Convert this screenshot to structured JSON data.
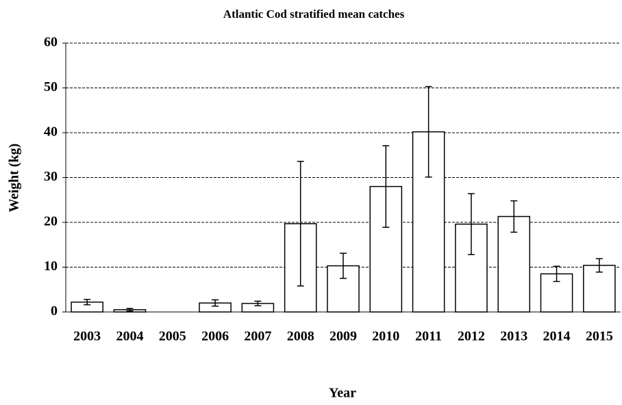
{
  "chart_data": {
    "type": "bar",
    "title": "Atlantic Cod stratified mean catches",
    "x_label": "Year",
    "y_label": "Weight (kg)",
    "categories": [
      "2003",
      "2004",
      "2005",
      "2006",
      "2007",
      "2008",
      "2009",
      "2010",
      "2011",
      "2012",
      "2013",
      "2014",
      "2015"
    ],
    "values": [
      2.2,
      0.5,
      null,
      2.0,
      1.9,
      19.7,
      10.3,
      28.0,
      40.2,
      19.6,
      21.3,
      8.5,
      10.4
    ],
    "errors": [
      0.6,
      0.3,
      null,
      0.7,
      0.5,
      13.9,
      2.8,
      9.1,
      10.1,
      6.8,
      3.5,
      1.7,
      1.5
    ],
    "color": "#ffffff",
    "ylim": [
      0,
      60
    ],
    "yticks": [
      0,
      10,
      20,
      30,
      40,
      50,
      60
    ],
    "grid": true
  }
}
